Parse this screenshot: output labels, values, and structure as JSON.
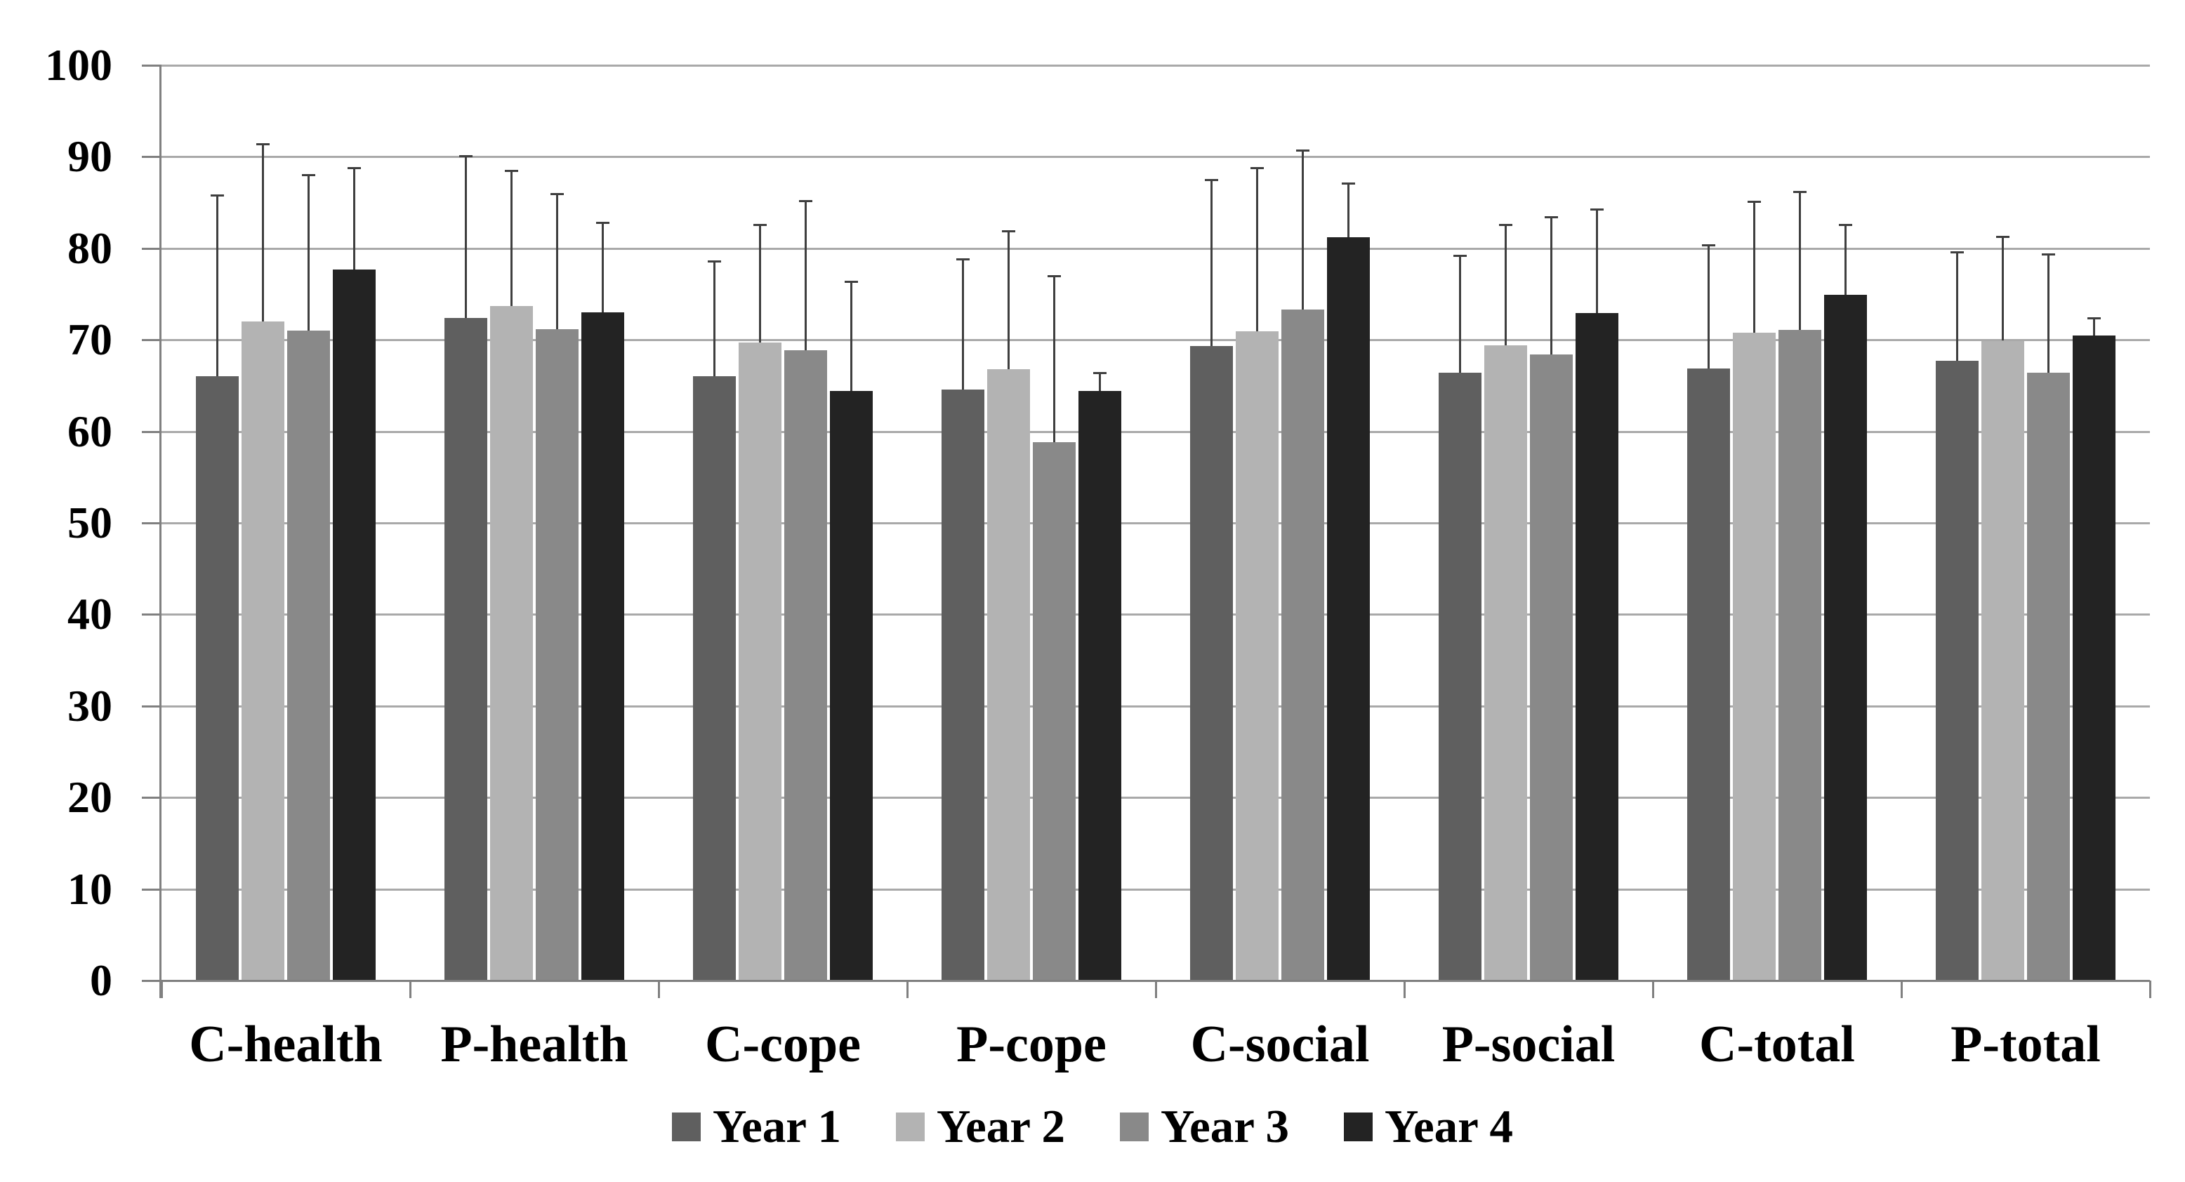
{
  "chart_data": {
    "type": "bar",
    "title": "",
    "xlabel": "",
    "ylabel": "",
    "categories": [
      "C-health",
      "P-health",
      "C-cope",
      "P-cope",
      "C-social",
      "P-social",
      "C-total",
      "P-total"
    ],
    "series": [
      {
        "name": "Year 1",
        "color": "#5f5f5f",
        "values": [
          66.0,
          72.4,
          66.0,
          64.6,
          69.3,
          66.4,
          66.9,
          67.7
        ],
        "error_tops": [
          85.8,
          90.1,
          78.6,
          78.8,
          87.5,
          79.2,
          80.4,
          79.6
        ]
      },
      {
        "name": "Year 2",
        "color": "#b3b3b3",
        "values": [
          72.0,
          73.7,
          69.7,
          66.8,
          70.9,
          69.4,
          70.8,
          69.9
        ],
        "error_tops": [
          91.4,
          88.5,
          82.6,
          81.9,
          88.8,
          82.6,
          85.1,
          81.3
        ]
      },
      {
        "name": "Year 3",
        "color": "#898989",
        "values": [
          71.0,
          71.2,
          68.9,
          58.8,
          73.3,
          68.4,
          71.1,
          66.4
        ],
        "error_tops": [
          88.0,
          86.0,
          85.2,
          77.0,
          90.7,
          83.4,
          86.2,
          79.4
        ]
      },
      {
        "name": "Year 4",
        "color": "#232323",
        "values": [
          77.7,
          73.0,
          64.4,
          64.4,
          81.2,
          72.9,
          74.9,
          70.5
        ],
        "error_tops": [
          88.8,
          82.8,
          76.4,
          66.4,
          87.1,
          84.3,
          82.6,
          72.4
        ]
      }
    ],
    "ylim": [
      0,
      100
    ],
    "yticks": [
      0,
      10,
      20,
      30,
      40,
      50,
      60,
      70,
      80,
      90,
      100
    ],
    "grid": "horizontal",
    "legend_position": "bottom",
    "error_bars": "upper"
  },
  "legend": {
    "items": [
      {
        "label": "Year 1",
        "color": "#5f5f5f"
      },
      {
        "label": "Year 2",
        "color": "#b3b3b3"
      },
      {
        "label": "Year 3",
        "color": "#898989"
      },
      {
        "label": "Year 4",
        "color": "#232323"
      }
    ]
  },
  "style": {
    "background": "#ffffff",
    "gridline_color": "#a9a9a9",
    "axis_color": "#808080",
    "error_bar_color": "#3f3f3f",
    "text_color": "#000000"
  }
}
